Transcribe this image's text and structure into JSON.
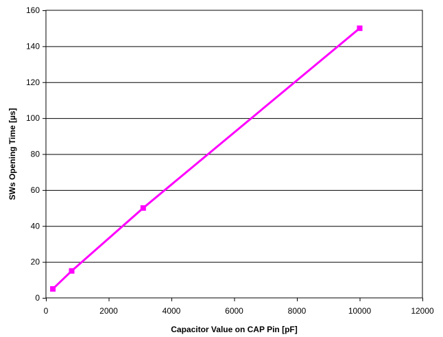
{
  "chart_data": {
    "type": "line",
    "title": "",
    "xlabel": "Capacitor Value on CAP Pin [pF]",
    "ylabel": "SWs Opening Time [µs]",
    "xlim": [
      0,
      12000
    ],
    "ylim": [
      0,
      160
    ],
    "xticks": [
      0,
      2000,
      4000,
      6000,
      8000,
      10000,
      12000
    ],
    "yticks": [
      0,
      20,
      40,
      60,
      80,
      100,
      120,
      140,
      160
    ],
    "grid": "horizontal",
    "legend": "none",
    "series": [
      {
        "color": "#ff00ff",
        "marker": "square",
        "x": [
          220,
          820,
          3100,
          10000
        ],
        "y": [
          5,
          15,
          50,
          150
        ]
      }
    ]
  }
}
